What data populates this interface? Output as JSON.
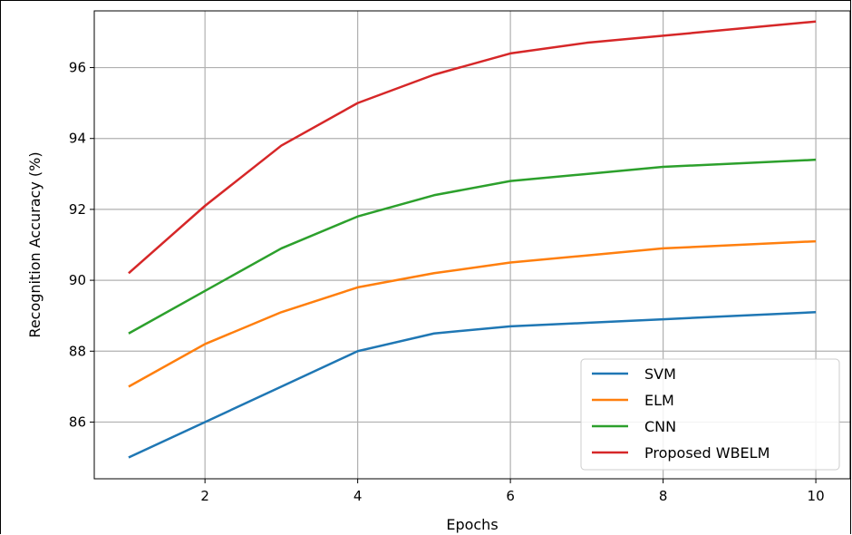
{
  "chart_data": {
    "type": "line",
    "xlabel": "Epochs",
    "ylabel": "Recognition Accuracy (%)",
    "xlim": [
      0.55,
      10.45
    ],
    "ylim": [
      84.4,
      97.6
    ],
    "xticks": [
      2,
      4,
      6,
      8,
      10
    ],
    "yticks": [
      86,
      88,
      90,
      92,
      94,
      96
    ],
    "grid": true,
    "legend_position": "lower right",
    "x": [
      1,
      2,
      3,
      4,
      5,
      6,
      7,
      8,
      9,
      10
    ],
    "series": [
      {
        "name": "SVM",
        "color": "#1f77b4",
        "values": [
          85.0,
          86.0,
          87.0,
          88.0,
          88.5,
          88.7,
          88.8,
          88.9,
          89.0,
          89.1
        ]
      },
      {
        "name": "ELM",
        "color": "#ff7f0e",
        "values": [
          87.0,
          88.2,
          89.1,
          89.8,
          90.2,
          90.5,
          90.7,
          90.9,
          91.0,
          91.1
        ]
      },
      {
        "name": "CNN",
        "color": "#2ca02c",
        "values": [
          88.5,
          89.7,
          90.9,
          91.8,
          92.4,
          92.8,
          93.0,
          93.2,
          93.3,
          93.4
        ]
      },
      {
        "name": "Proposed WBELM",
        "color": "#d62728",
        "values": [
          90.2,
          92.1,
          93.8,
          95.0,
          95.8,
          96.4,
          96.7,
          96.9,
          97.1,
          97.3
        ]
      }
    ]
  }
}
